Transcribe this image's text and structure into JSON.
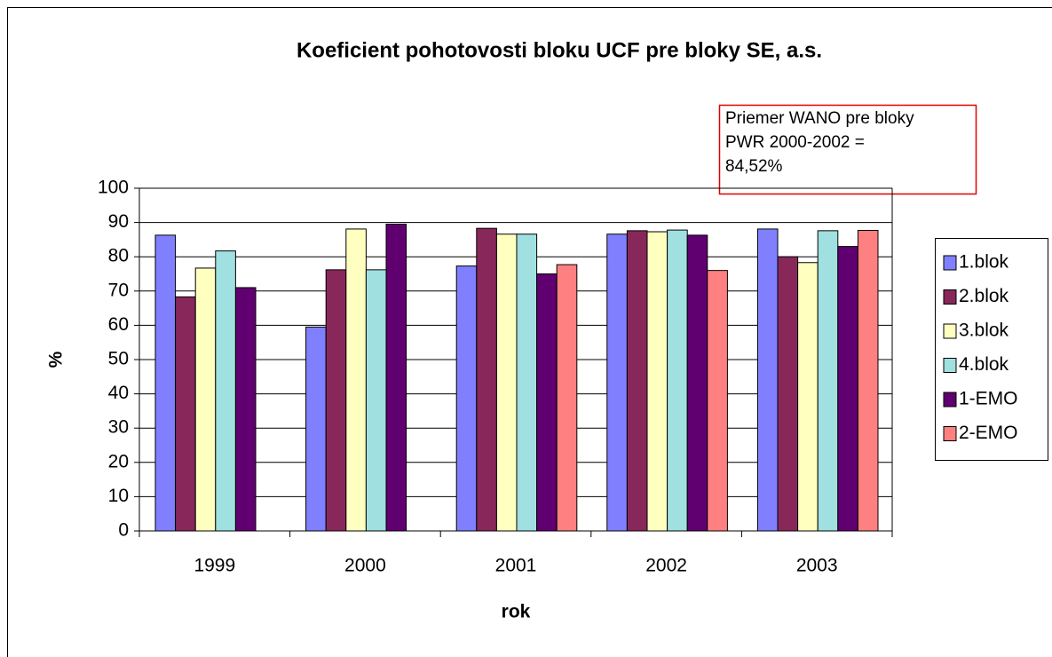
{
  "chart_data": {
    "type": "bar",
    "title": "Koeficient pohotovosti bloku UCF pre bloky SE, a.s.",
    "annotation": [
      "Priemer WANO pre bloky",
      "PWR 2000-2002 =",
      "84,52%"
    ],
    "x_label": "rok",
    "y_label": "%",
    "categories": [
      "1999",
      "2000",
      "2001",
      "2002",
      "2003"
    ],
    "series": [
      {
        "name": "1.blok",
        "color": "#8080ff",
        "values": [
          86.3,
          59.5,
          77.3,
          86.6,
          88.1
        ]
      },
      {
        "name": "2.blok",
        "color": "#88285a",
        "values": [
          68.3,
          76.2,
          88.3,
          87.6,
          80
        ]
      },
      {
        "name": "3.blok",
        "color": "#ffffc0",
        "values": [
          76.7,
          88.1,
          86.6,
          87.3,
          78.3
        ]
      },
      {
        "name": "4.blok",
        "color": "#a0e0e0",
        "values": [
          81.7,
          76.2,
          86.6,
          87.8,
          87.6
        ]
      },
      {
        "name": "1-EMO",
        "color": "#600070",
        "values": [
          71,
          89.5,
          75,
          86.3,
          83
        ]
      },
      {
        "name": "2-EMO",
        "color": "#ff8080",
        "values": [
          null,
          null,
          77.7,
          76,
          87.7
        ]
      }
    ],
    "ylim": [
      0,
      100
    ],
    "yticks": [
      0,
      10,
      20,
      30,
      40,
      50,
      60,
      70,
      80,
      90,
      100
    ],
    "grid": true
  }
}
